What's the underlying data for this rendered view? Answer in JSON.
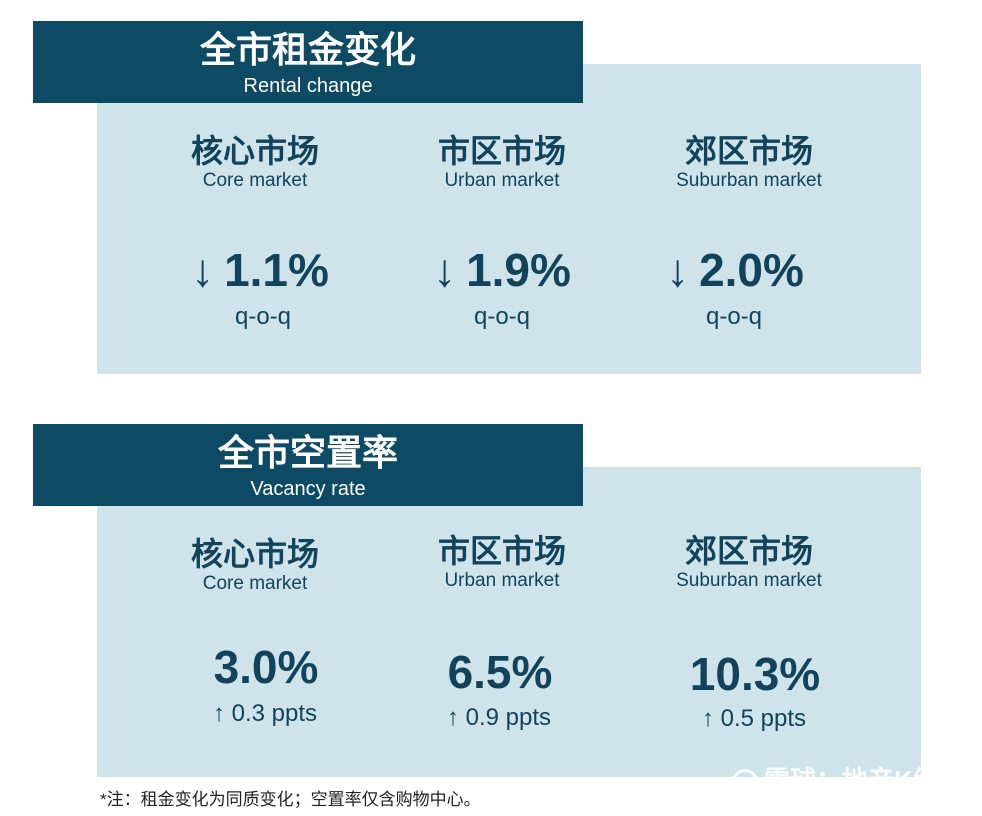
{
  "rental": {
    "title_zh": "全市租金变化",
    "title_en": "Rental change",
    "markets": [
      {
        "name_zh": "核心市场",
        "name_en": "Core market",
        "arrow": "↓",
        "value": "1.1%",
        "sub": "q-o-q"
      },
      {
        "name_zh": "市区市场",
        "name_en": "Urban market",
        "arrow": "↓",
        "value": "1.9%",
        "sub": "q-o-q"
      },
      {
        "name_zh": "郊区市场",
        "name_en": "Suburban market",
        "arrow": "↓",
        "value": "2.0%",
        "sub": "q-o-q"
      }
    ]
  },
  "vacancy": {
    "title_zh": "全市空置率",
    "title_en": "Vacancy rate",
    "markets": [
      {
        "name_zh": "核心市场",
        "name_en": "Core market",
        "value": "3.0%",
        "sub": "↑ 0.3 ppts"
      },
      {
        "name_zh": "市区市场",
        "name_en": "Urban market",
        "value": "6.5%",
        "sub": "↑ 0.9 ppts"
      },
      {
        "name_zh": "郊区市场",
        "name_en": "Suburban market",
        "value": "10.3%",
        "sub": "↑ 0.5 ppts"
      }
    ]
  },
  "note": "*注：租金变化为同质变化；空置率仅含购物中心。",
  "watermark": "雪球：地产K线",
  "colors": {
    "header": "#0d4a63",
    "panel": "#cfe4ea",
    "text": "#12435b"
  }
}
